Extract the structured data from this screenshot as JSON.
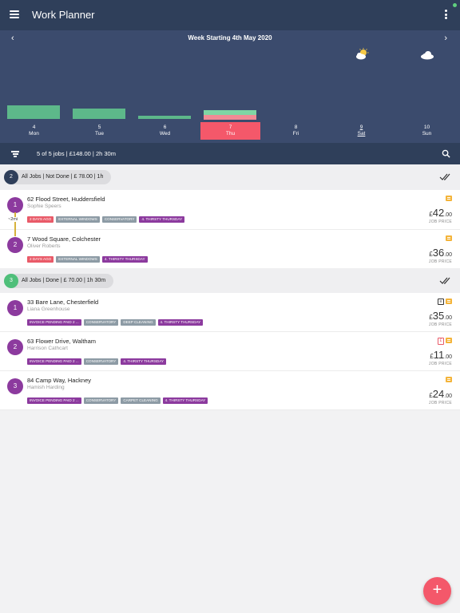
{
  "app": {
    "title": "Work Planner",
    "accent": "#f4586a",
    "header_bg": "#2f3f5a",
    "week_bg": "#3b4b6d"
  },
  "week": {
    "title": "Week Starting 4th May 2020",
    "days": [
      {
        "num": "4",
        "name": "Mon"
      },
      {
        "num": "5",
        "name": "Tue"
      },
      {
        "num": "6",
        "name": "Wed"
      },
      {
        "num": "7",
        "name": "Thu"
      },
      {
        "num": "8",
        "name": "Fri"
      },
      {
        "num": "9",
        "name": "Sat"
      },
      {
        "num": "10",
        "name": "Sun"
      }
    ],
    "selected_day": "Thu",
    "weather": [
      {
        "day": "Sat",
        "icon": "partly-sunny-icon"
      },
      {
        "day": "Sun",
        "icon": "cloud-icon"
      }
    ]
  },
  "filter": {
    "summary": "5 of 5 jobs | £148.00 | 2h 30m"
  },
  "groups": [
    {
      "count": "2",
      "title": "All Jobs | Not Done | £ 78.00 | 1h",
      "color": "#2f3f5a",
      "distance": "~2mi",
      "jobs": [
        {
          "num": "1",
          "address": "62 Flood Street, Huddersfield",
          "client": "Sophie Speers",
          "tags": [
            {
              "text": "2 days ago",
              "color": "red"
            },
            {
              "text": "External windows",
              "color": "grey"
            },
            {
              "text": "Conservatory",
              "color": "grey"
            },
            {
              "text": "4. Thirsty Thursday",
              "color": "purple"
            }
          ],
          "price_cur": "£",
          "price_main": "42",
          "price_dec": ".00",
          "price_label": "JOB PRICE",
          "icons": [
            "note-icon"
          ]
        },
        {
          "num": "2",
          "address": "7 Wood Square, Colchester",
          "client": "Oliver Roberts",
          "tags": [
            {
              "text": "2 days ago",
              "color": "red"
            },
            {
              "text": "External windows",
              "color": "grey"
            },
            {
              "text": "4. Thirsty Thursday",
              "color": "purple"
            }
          ],
          "price_cur": "£",
          "price_main": "36",
          "price_dec": ".00",
          "price_label": "JOB PRICE",
          "icons": [
            "note-icon"
          ]
        }
      ]
    },
    {
      "count": "3",
      "title": "All Jobs | Done | £ 70.00 | 1h 30m",
      "color": "#4fbf7a",
      "jobs": [
        {
          "num": "1",
          "address": "33 Bare Lane, Chesterfield",
          "client": "Liana Greenhouse",
          "tags": [
            {
              "text": "Invoice pending paid 2 ...",
              "color": "purple"
            },
            {
              "text": "Conservatory",
              "color": "grey"
            },
            {
              "text": "Deep cleaning",
              "color": "grey"
            },
            {
              "text": "4. Thirsty Thursday",
              "color": "purple"
            }
          ],
          "price_cur": "£",
          "price_main": "35",
          "price_dec": ".00",
          "price_label": "JOB PRICE",
          "icons": [
            "invoice-icon",
            "note-icon"
          ]
        },
        {
          "num": "2",
          "address": "63 Flower Drive, Waltham",
          "client": "Harrison Cathcart",
          "tags": [
            {
              "text": "Invoice pending paid 2 ...",
              "color": "purple"
            },
            {
              "text": "Conservatory",
              "color": "grey"
            },
            {
              "text": "4. Thirsty Thursday",
              "color": "purple"
            }
          ],
          "price_cur": "£",
          "price_main": "11",
          "price_dec": ".00",
          "price_label": "JOB PRICE",
          "icons": [
            "cash-icon",
            "note-icon"
          ]
        },
        {
          "num": "3",
          "address": "84 Camp Way, Hackney",
          "client": "Hamish Harding",
          "tags": [
            {
              "text": "Invoice pending paid 2 ...",
              "color": "purple"
            },
            {
              "text": "Conservatory",
              "color": "grey"
            },
            {
              "text": "Carpet cleaning",
              "color": "grey"
            },
            {
              "text": "4. Thirsty Thursday",
              "color": "purple"
            }
          ],
          "price_cur": "£",
          "price_main": "24",
          "price_dec": ".00",
          "price_label": "JOB PRICE",
          "icons": [
            "note-icon"
          ]
        }
      ]
    }
  ],
  "fab": {
    "label": "+"
  }
}
